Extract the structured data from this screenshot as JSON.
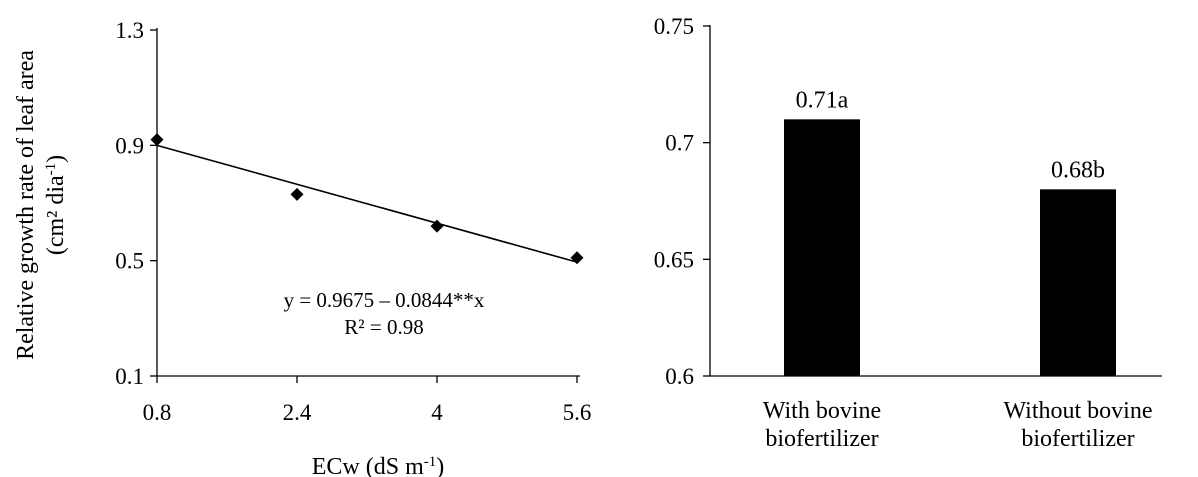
{
  "chart_data": [
    {
      "type": "scatter",
      "x_axis_label_main": "ECw (dS m",
      "x_axis_label_sup": "-1",
      "x_axis_label_end": ")",
      "y_axis_label_line1": "Relative growth rate of leaf area",
      "y_axis_label_line2_main": "(cm² dia",
      "y_axis_label_line2_sup": "-1",
      "y_axis_label_line2_end": ")",
      "x_ticks": [
        "0.8",
        "2.4",
        "4",
        "5.6"
      ],
      "y_ticks": [
        "0.1",
        "0.5",
        "0.9",
        "1.3"
      ],
      "xlim": [
        0.8,
        5.6
      ],
      "ylim": [
        0.1,
        1.3
      ],
      "x": [
        0.8,
        2.4,
        4.0,
        5.6
      ],
      "y": [
        0.92,
        0.73,
        0.62,
        0.51
      ],
      "trendline": {
        "intercept": 0.9675,
        "slope": -0.0844
      },
      "equation": "y = 0.9675 – 0.0844**x",
      "r_squared": "R² = 0.98",
      "grid": false
    },
    {
      "type": "bar",
      "categories": [
        [
          "With bovine",
          "biofertilizer"
        ],
        [
          "Without bovine",
          "biofertilizer"
        ]
      ],
      "values": [
        0.71,
        0.68
      ],
      "data_labels": [
        "0.71a",
        "0.68b"
      ],
      "y_ticks": [
        "0.6",
        "0.65",
        "0.7",
        "0.75"
      ],
      "ylim": [
        0.6,
        0.75
      ],
      "bar_color": "#000000",
      "grid": false
    }
  ]
}
